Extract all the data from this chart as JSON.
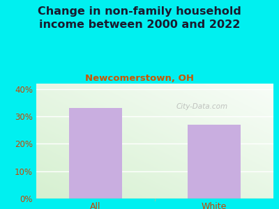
{
  "title": "Change in non-family household\nincome between 2000 and 2022",
  "subtitle": "Newcomerstown, OH",
  "categories": [
    "All",
    "White"
  ],
  "values": [
    33,
    27
  ],
  "bar_color": "#c9aee0",
  "title_color": "#1a1a2e",
  "subtitle_color": "#cc5500",
  "title_fontsize": 11.5,
  "subtitle_fontsize": 9.5,
  "tick_label_color": "#cc4400",
  "background_outer": "#00f0f0",
  "ylim": [
    0,
    0.42
  ],
  "yticks": [
    0,
    0.1,
    0.2,
    0.3,
    0.4
  ],
  "ytick_labels": [
    "0%",
    "10%",
    "20%",
    "30%",
    "40%"
  ],
  "watermark": "City-Data.com"
}
